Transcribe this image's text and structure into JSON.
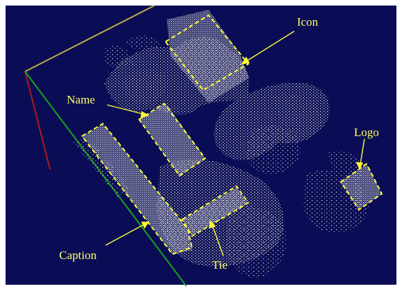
{
  "scene": {
    "colors": {
      "background": "#0a0d55",
      "points": "#d9d9d9",
      "annotation": "#ffff33",
      "axis_yellow": "#b8b33a",
      "axis_green": "#1aa31a",
      "axis_red": "#b01818"
    },
    "labels": {
      "icon": "Icon",
      "name": "Name",
      "logo": "Logo",
      "caption": "Caption",
      "tie": "Tie"
    }
  }
}
